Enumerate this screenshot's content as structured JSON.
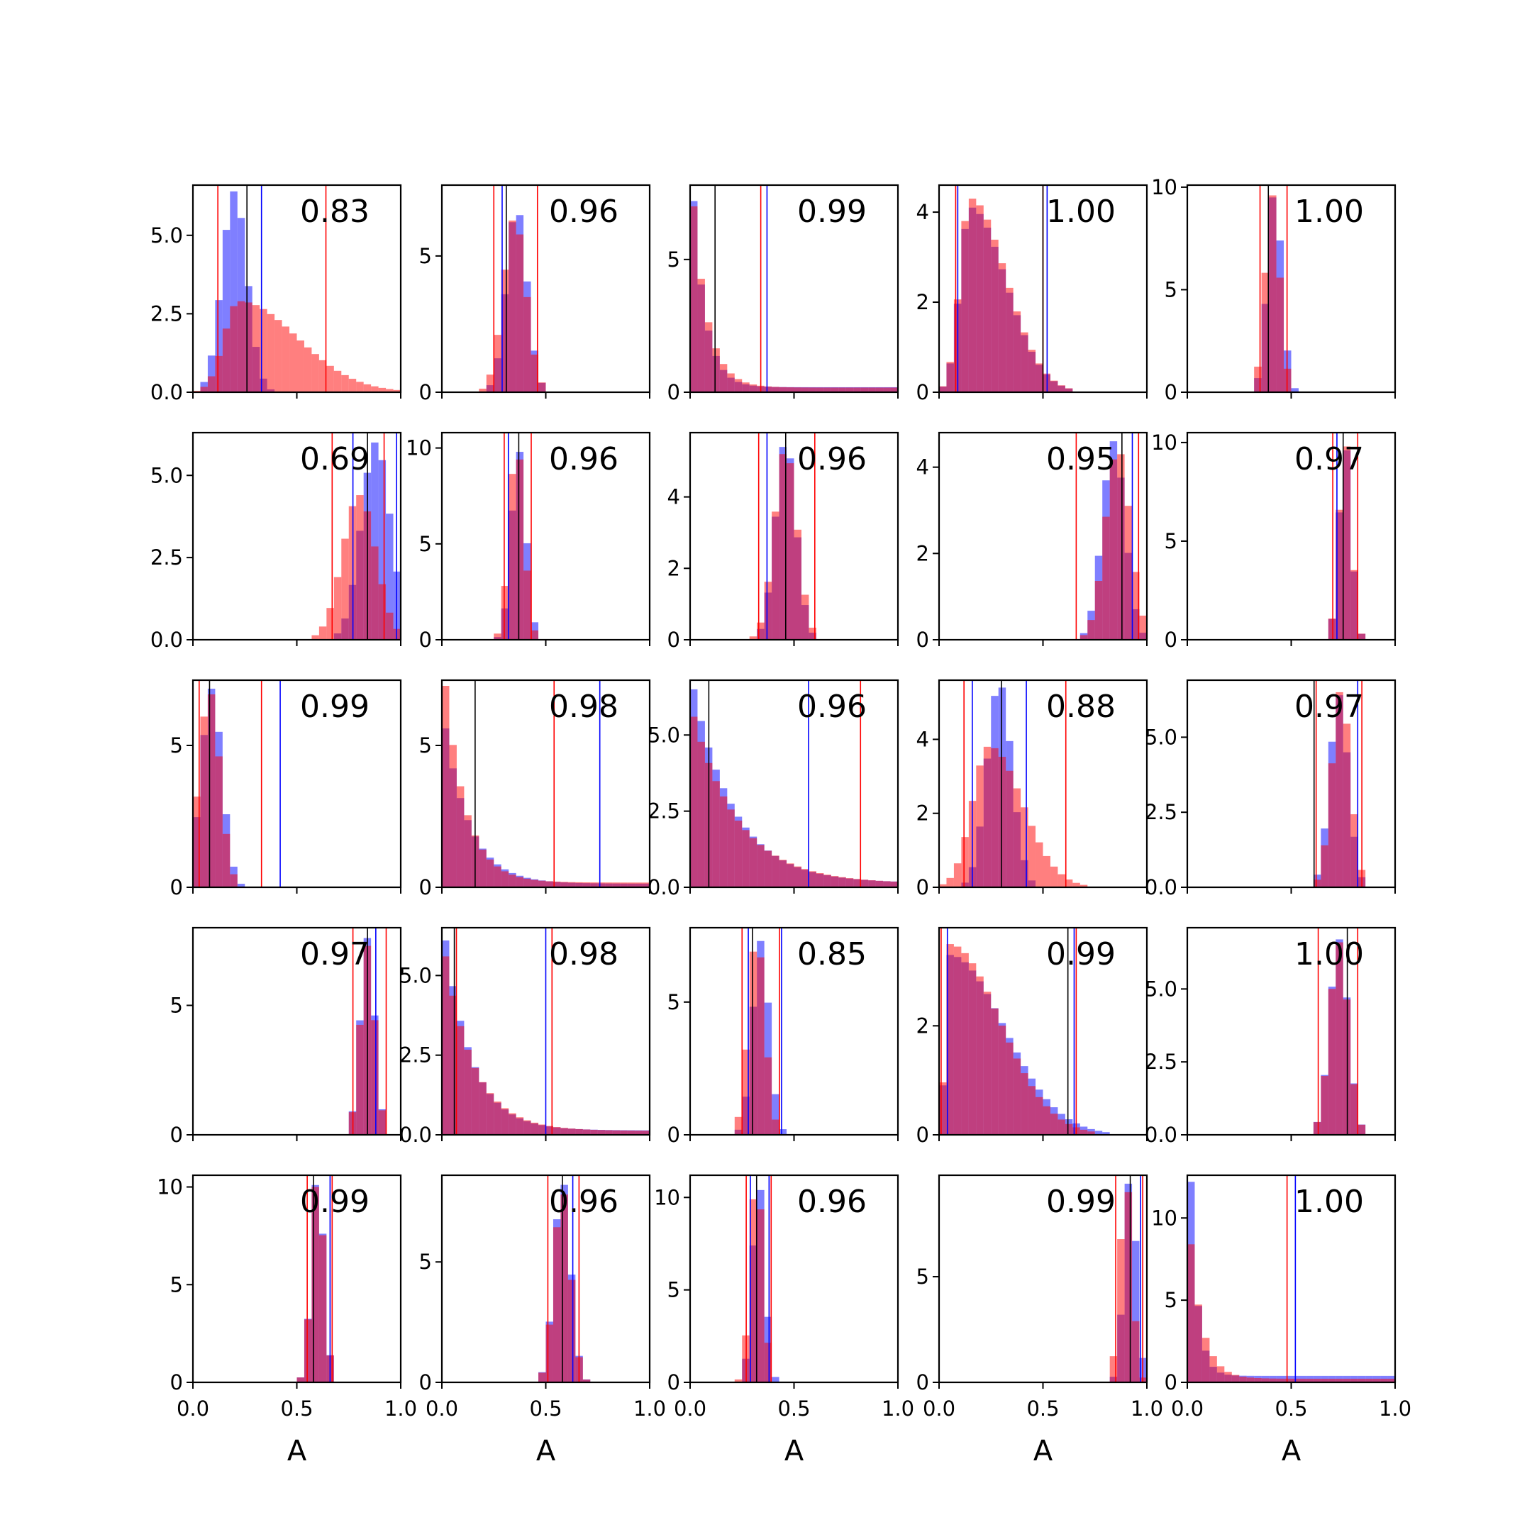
{
  "figure": {
    "background": "#ffffff"
  },
  "colors": {
    "blue": "#0000ff",
    "red": "#ff0000",
    "black": "#000000",
    "blue_fill": "#0000ff",
    "red_fill": "#ff0000"
  },
  "chart_data": {
    "type": "histogram-grid",
    "rows": 5,
    "cols": 5,
    "xlim": [
      0,
      1
    ],
    "xticks": [
      "0.0",
      "0.5",
      "1.0"
    ],
    "xlabel": "A",
    "panels": [
      {
        "annotation": "0.83",
        "ymax": 6.6,
        "yticks": [
          "0.0",
          "2.5",
          "5.0"
        ],
        "ytick_values": [
          0,
          2.5,
          5.0
        ],
        "blue": {
          "shape": "normal",
          "mean": 0.2,
          "sd": 0.06,
          "peak": 6.4
        },
        "red": {
          "shape": "skew",
          "mode": 0.22,
          "left": 0.07,
          "right": 0.28,
          "peak": 2.9
        },
        "vlines": {
          "red": [
            0.12,
            0.64
          ],
          "blue": [
            0.33
          ],
          "black": [
            0.26
          ]
        }
      },
      {
        "annotation": "0.96",
        "ymax": 7.6,
        "yticks": [
          "0",
          "5"
        ],
        "ytick_values": [
          0,
          5
        ],
        "blue": {
          "shape": "normal",
          "mean": 0.36,
          "sd": 0.05,
          "peak": 6.5
        },
        "red": {
          "shape": "normal",
          "mean": 0.35,
          "sd": 0.055,
          "peak": 6.3
        },
        "vlines": {
          "red": [
            0.25,
            0.46
          ],
          "blue": [
            0.29
          ],
          "black": [
            0.31
          ]
        }
      },
      {
        "annotation": "0.99",
        "ymax": 7.8,
        "yticks": [
          "0",
          "5"
        ],
        "ytick_values": [
          0,
          5
        ],
        "blue": {
          "shape": "decay",
          "start": 0.0,
          "scale": 0.06,
          "peak": 7.2
        },
        "red": {
          "shape": "decay",
          "start": 0.0,
          "scale": 0.07,
          "peak": 7.0
        },
        "vlines": {
          "red": [
            0.0,
            0.34
          ],
          "blue": [
            0.37
          ],
          "black": [
            0.12
          ]
        }
      },
      {
        "annotation": "1.00",
        "ymax": 4.6,
        "yticks": [
          "0",
          "2",
          "4"
        ],
        "ytick_values": [
          0,
          2,
          4
        ],
        "blue": {
          "shape": "skew",
          "mode": 0.15,
          "left": 0.05,
          "right": 0.17,
          "peak": 4.1
        },
        "red": {
          "shape": "skew",
          "mode": 0.15,
          "left": 0.05,
          "right": 0.17,
          "peak": 4.3
        },
        "vlines": {
          "red": [
            0.08,
            0.5
          ],
          "blue": [
            0.09,
            0.52
          ],
          "black": [
            0.5
          ]
        }
      },
      {
        "annotation": "1.00",
        "ymax": 10.1,
        "yticks": [
          "0",
          "5",
          "10"
        ],
        "ytick_values": [
          0,
          5,
          10
        ],
        "blue": {
          "shape": "normal",
          "mean": 0.42,
          "sd": 0.035,
          "peak": 9.5
        },
        "red": {
          "shape": "normal",
          "mean": 0.41,
          "sd": 0.035,
          "peak": 9.6
        },
        "vlines": {
          "red": [
            0.35,
            0.48
          ],
          "blue": [],
          "black": [
            0.39
          ]
        }
      },
      {
        "annotation": "0.69",
        "ymax": 6.3,
        "yticks": [
          "0.0",
          "2.5",
          "5.0"
        ],
        "ytick_values": [
          0,
          2.5,
          5.0
        ],
        "blue": {
          "shape": "normal",
          "mean": 0.88,
          "sd": 0.07,
          "peak": 6.0
        },
        "red": {
          "shape": "normal",
          "mean": 0.8,
          "sd": 0.08,
          "peak": 4.4
        },
        "vlines": {
          "red": [
            0.67,
            0.92
          ],
          "blue": [
            0.77,
            0.98
          ],
          "black": [
            0.84
          ]
        }
      },
      {
        "annotation": "0.96",
        "ymax": 10.8,
        "yticks": [
          "0",
          "5",
          "10"
        ],
        "ytick_values": [
          0,
          5,
          10
        ],
        "blue": {
          "shape": "normal",
          "mean": 0.37,
          "sd": 0.035,
          "peak": 9.8
        },
        "red": {
          "shape": "normal",
          "mean": 0.36,
          "sd": 0.035,
          "peak": 9.4
        },
        "vlines": {
          "red": [
            0.3,
            0.43
          ],
          "blue": [
            0.32
          ],
          "black": [
            0.37
          ]
        }
      },
      {
        "annotation": "0.96",
        "ymax": 5.8,
        "yticks": [
          "0",
          "2",
          "4"
        ],
        "ytick_values": [
          0,
          2,
          4
        ],
        "blue": {
          "shape": "normal",
          "mean": 0.46,
          "sd": 0.05,
          "peak": 5.4
        },
        "red": {
          "shape": "normal",
          "mean": 0.46,
          "sd": 0.055,
          "peak": 5.2
        },
        "vlines": {
          "red": [
            0.33,
            0.6
          ],
          "blue": [
            0.37
          ],
          "black": [
            0.46
          ]
        }
      },
      {
        "annotation": "0.95",
        "ymax": 4.8,
        "yticks": [
          "0",
          "2",
          "4"
        ],
        "ytick_values": [
          0,
          2,
          4
        ],
        "blue": {
          "shape": "normal",
          "mean": 0.84,
          "sd": 0.055,
          "peak": 4.6
        },
        "red": {
          "shape": "normal",
          "mean": 0.86,
          "sd": 0.06,
          "peak": 4.3
        },
        "vlines": {
          "red": [
            0.66,
            0.96
          ],
          "blue": [
            0.93
          ],
          "black": [
            0.88
          ]
        }
      },
      {
        "annotation": "0.97",
        "ymax": 10.5,
        "yticks": [
          "0",
          "5",
          "10"
        ],
        "ytick_values": [
          0,
          5,
          10
        ],
        "blue": {
          "shape": "normal",
          "mean": 0.76,
          "sd": 0.03,
          "peak": 9.6
        },
        "red": {
          "shape": "normal",
          "mean": 0.76,
          "sd": 0.03,
          "peak": 9.8
        },
        "vlines": {
          "red": [
            0.7,
            0.82
          ],
          "blue": [
            0.72
          ],
          "black": [
            0.75
          ]
        }
      },
      {
        "annotation": "0.99",
        "ymax": 7.3,
        "yticks": [
          "0",
          "5"
        ],
        "ytick_values": [
          0,
          5
        ],
        "blue": {
          "shape": "normal",
          "mean": 0.09,
          "sd": 0.05,
          "peak": 7.0
        },
        "red": {
          "shape": "normal",
          "mean": 0.08,
          "sd": 0.05,
          "peak": 6.8
        },
        "vlines": {
          "red": [
            0.03,
            0.33
          ],
          "blue": [
            0.42
          ],
          "black": [
            0.08
          ]
        }
      },
      {
        "annotation": "0.98",
        "ymax": 7.3,
        "yticks": [
          "0",
          "5"
        ],
        "ytick_values": [
          0,
          5
        ],
        "blue": {
          "shape": "decay",
          "start": 0.0,
          "scale": 0.12,
          "peak": 5.6
        },
        "red": {
          "shape": "decay",
          "start": 0.0,
          "scale": 0.1,
          "peak": 7.1
        },
        "vlines": {
          "red": [
            0.54
          ],
          "blue": [
            0.76
          ],
          "black": [
            0.16
          ]
        }
      },
      {
        "annotation": "0.96",
        "ymax": 6.8,
        "yticks": [
          "0.0",
          "2.5",
          "5.0"
        ],
        "ytick_values": [
          0,
          2.5,
          5.0
        ],
        "blue": {
          "shape": "decay",
          "start": 0.0,
          "scale": 0.2,
          "peak": 6.5
        },
        "red": {
          "shape": "decay",
          "start": 0.0,
          "scale": 0.22,
          "peak": 5.6
        },
        "vlines": {
          "red": [
            0.82
          ],
          "blue": [
            0.57
          ],
          "black": [
            0.09
          ]
        }
      },
      {
        "annotation": "0.88",
        "ymax": 5.6,
        "yticks": [
          "0",
          "2",
          "4"
        ],
        "ytick_values": [
          0,
          2,
          4
        ],
        "blue": {
          "shape": "normal",
          "mean": 0.29,
          "sd": 0.06,
          "peak": 5.4
        },
        "red": {
          "shape": "skew",
          "mode": 0.24,
          "left": 0.08,
          "right": 0.16,
          "peak": 3.8
        },
        "vlines": {
          "red": [
            0.12,
            0.61
          ],
          "blue": [
            0.16,
            0.42
          ],
          "black": [
            0.3
          ]
        }
      },
      {
        "annotation": "0.97",
        "ymax": 6.9,
        "yticks": [
          "0.0",
          "2.5",
          "5.0"
        ],
        "ytick_values": [
          0,
          2.5,
          5.0
        ],
        "blue": {
          "shape": "normal",
          "mean": 0.73,
          "sd": 0.045,
          "peak": 6.4
        },
        "red": {
          "shape": "normal",
          "mean": 0.74,
          "sd": 0.045,
          "peak": 6.5
        },
        "vlines": {
          "red": [
            0.62,
            0.84
          ],
          "blue": [
            0.82
          ],
          "black": [
            0.61
          ]
        }
      },
      {
        "annotation": "0.97",
        "ymax": 8.0,
        "yticks": [
          "0",
          "5"
        ],
        "ytick_values": [
          0,
          5
        ],
        "blue": {
          "shape": "normal",
          "mean": 0.84,
          "sd": 0.035,
          "peak": 7.6
        },
        "red": {
          "shape": "normal",
          "mean": 0.84,
          "sd": 0.035,
          "peak": 7.3
        },
        "vlines": {
          "red": [
            0.77,
            0.93
          ],
          "blue": [
            0.88
          ],
          "black": [
            0.84
          ]
        }
      },
      {
        "annotation": "0.98",
        "ymax": 6.5,
        "yticks": [
          "0.0",
          "2.5",
          "5.0"
        ],
        "ytick_values": [
          0,
          2.5,
          5.0
        ],
        "blue": {
          "shape": "decay",
          "start": 0.0,
          "scale": 0.13,
          "peak": 6.1
        },
        "red": {
          "shape": "decay",
          "start": 0.0,
          "scale": 0.14,
          "peak": 5.6
        },
        "vlines": {
          "red": [
            0.07,
            0.53
          ],
          "blue": [
            0.5
          ],
          "black": [
            0.06
          ]
        }
      },
      {
        "annotation": "0.85",
        "ymax": 7.8,
        "yticks": [
          "0",
          "5"
        ],
        "ytick_values": [
          0,
          5
        ],
        "blue": {
          "shape": "normal",
          "mean": 0.34,
          "sd": 0.04,
          "peak": 7.3
        },
        "red": {
          "shape": "normal",
          "mean": 0.32,
          "sd": 0.04,
          "peak": 6.9
        },
        "vlines": {
          "red": [
            0.25,
            0.43
          ],
          "blue": [
            0.28,
            0.44
          ],
          "black": [
            0.3
          ]
        }
      },
      {
        "annotation": "0.99",
        "ymax": 3.8,
        "yticks": [
          "0",
          "2"
        ],
        "ytick_values": [
          0,
          2
        ],
        "blue": {
          "shape": "skew",
          "mode": 0.05,
          "left": 0.02,
          "right": 0.26,
          "peak": 3.3
        },
        "red": {
          "shape": "skew",
          "mode": 0.05,
          "left": 0.02,
          "right": 0.24,
          "peak": 3.5
        },
        "vlines": {
          "red": [
            0.01,
            0.66
          ],
          "blue": [
            0.04,
            0.65
          ],
          "black": [
            0.62
          ]
        }
      },
      {
        "annotation": "1.00",
        "ymax": 7.1,
        "yticks": [
          "0.0",
          "2.5",
          "5.0"
        ],
        "ytick_values": [
          0,
          2.5,
          5.0
        ],
        "blue": {
          "shape": "normal",
          "mean": 0.73,
          "sd": 0.045,
          "peak": 6.7
        },
        "red": {
          "shape": "normal",
          "mean": 0.73,
          "sd": 0.045,
          "peak": 6.6
        },
        "vlines": {
          "red": [
            0.63,
            0.82
          ],
          "blue": [],
          "black": [
            0.77
          ]
        }
      },
      {
        "annotation": "0.99",
        "ymax": 10.6,
        "yticks": [
          "0",
          "5",
          "10"
        ],
        "ytick_values": [
          0,
          5,
          10
        ],
        "blue": {
          "shape": "normal",
          "mean": 0.6,
          "sd": 0.03,
          "peak": 10.1
        },
        "red": {
          "shape": "normal",
          "mean": 0.6,
          "sd": 0.03,
          "peak": 10.0
        },
        "vlines": {
          "red": [
            0.55,
            0.67
          ],
          "blue": [
            0.66
          ],
          "black": [
            0.58
          ]
        }
      },
      {
        "annotation": "0.96",
        "ymax": 8.6,
        "yticks": [
          "0",
          "5"
        ],
        "ytick_values": [
          0,
          5
        ],
        "blue": {
          "shape": "normal",
          "mean": 0.58,
          "sd": 0.04,
          "peak": 8.2
        },
        "red": {
          "shape": "normal",
          "mean": 0.58,
          "sd": 0.04,
          "peak": 7.8
        },
        "vlines": {
          "red": [
            0.51,
            0.66
          ],
          "blue": [
            0.63
          ],
          "black": [
            0.58
          ]
        }
      },
      {
        "annotation": "0.96",
        "ymax": 11.2,
        "yticks": [
          "0",
          "5",
          "10"
        ],
        "ytick_values": [
          0,
          5,
          10
        ],
        "blue": {
          "shape": "normal",
          "mean": 0.33,
          "sd": 0.03,
          "peak": 10.4
        },
        "red": {
          "shape": "normal",
          "mean": 0.32,
          "sd": 0.03,
          "peak": 9.9
        },
        "vlines": {
          "red": [
            0.27,
            0.39
          ],
          "blue": [
            0.29,
            0.38
          ],
          "black": [
            0.32
          ]
        }
      },
      {
        "annotation": "0.99",
        "ymax": 9.8,
        "yticks": [
          "0",
          "5"
        ],
        "ytick_values": [
          0,
          5
        ],
        "blue": {
          "shape": "normal",
          "mean": 0.92,
          "sd": 0.03,
          "peak": 9.4
        },
        "red": {
          "shape": "normal",
          "mean": 0.9,
          "sd": 0.03,
          "peak": 9.0
        },
        "vlines": {
          "red": [
            0.85,
            0.98
          ],
          "blue": [
            0.97
          ],
          "black": [
            0.92
          ]
        }
      },
      {
        "annotation": "1.00",
        "ymax": 12.6,
        "yticks": [
          "0",
          "5",
          "10"
        ],
        "ytick_values": [
          0,
          5,
          10
        ],
        "blue": {
          "shape": "decay",
          "start": 0.0,
          "scale": 0.035,
          "peak": 12.2
        },
        "red": {
          "shape": "decay",
          "start": 0.0,
          "scale": 0.06,
          "peak": 8.4
        },
        "vlines": {
          "red": [
            0.48
          ],
          "blue": [
            0.52
          ],
          "black": []
        }
      }
    ]
  }
}
